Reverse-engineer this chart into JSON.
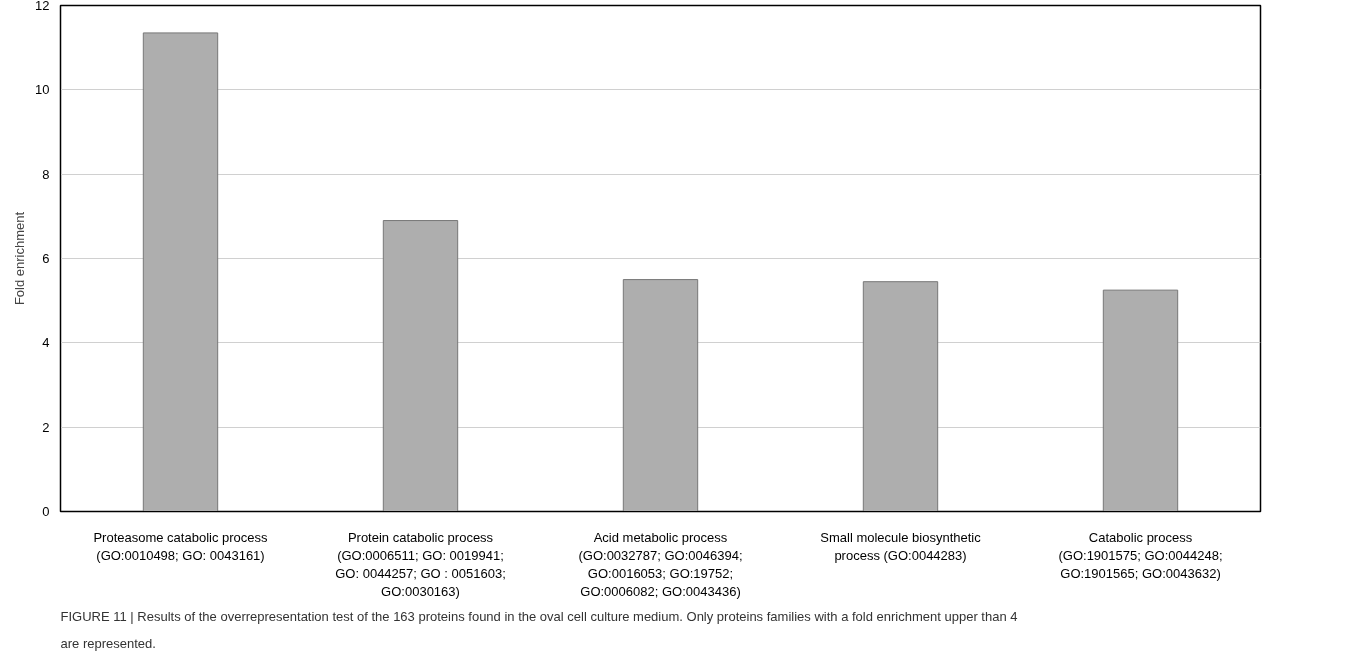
{
  "chart_data": {
    "type": "bar",
    "ylabel": "Fold enrichment",
    "categories": [
      "Proteasome catabolic process (GO:0010498; GO: 0043161)",
      "Protein catabolic process (GO:0006511; GO: 0019941; GO: 0044257; GO : 0051603; GO:0030163)",
      "Acid metabolic process (GO:0032787; GO:0046394; GO:0016053; GO:19752; GO:0006082; GO:0043436)",
      "Small molecule biosynthetic process (GO:0044283)",
      "Catabolic process (GO:1901575; GO:0044248; GO:1901565; GO:0043632)"
    ],
    "values": [
      11.35,
      6.9,
      5.5,
      5.45,
      5.25
    ],
    "color": "#aeaeae",
    "ylim": [
      0,
      12
    ],
    "yticks": [
      0,
      2,
      4,
      6,
      8,
      10,
      12
    ],
    "grid": "y",
    "annotations": [
      "FIGURE 11 | Results of the overrepresentation test of the 163 proteins found in the oval cell culture medium. Only proteins families with a fold enrichment upper than 4 are represented."
    ]
  }
}
